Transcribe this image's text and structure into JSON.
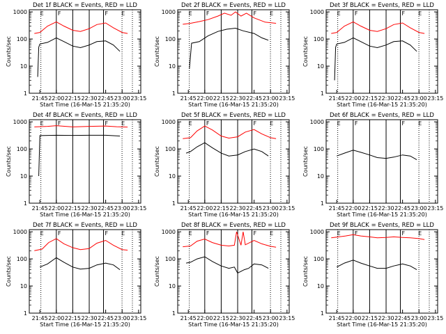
{
  "chart_data": [
    {
      "type": "line",
      "title": "Det 1f BLACK = Events, RED = LLD",
      "xlabel": "Start Time (16-Mar-15 21:35:20)",
      "ylabel": "Counts/sec",
      "xticks": [
        "21:45",
        "22:00",
        "22:15",
        "22:30",
        "22:45",
        "23:00",
        "23:15"
      ],
      "yticks": [
        "1",
        "10",
        "100",
        "1000"
      ],
      "ylim": [
        1,
        1200
      ],
      "yscale": "log",
      "grid": false,
      "markers": [
        "E",
        "F",
        "F",
        "E"
      ],
      "series": [
        {
          "name": "LLD",
          "color": "#ff0000",
          "times": [
            "21:40",
            "21:45",
            "21:52",
            "22:00",
            "22:07",
            "22:15",
            "22:22",
            "22:30",
            "22:37",
            "22:45",
            "22:52",
            "23:00",
            "23:05"
          ],
          "values": [
            160,
            175,
            300,
            430,
            300,
            210,
            190,
            240,
            340,
            390,
            260,
            175,
            160
          ]
        },
        {
          "name": "Events",
          "color": "#000000",
          "times": [
            "21:43",
            "21:44",
            "21:45",
            "21:52",
            "22:00",
            "22:07",
            "22:15",
            "22:22",
            "22:30",
            "22:37",
            "22:45",
            "22:52",
            "22:58"
          ],
          "values": [
            4,
            50,
            65,
            75,
            110,
            80,
            55,
            48,
            60,
            80,
            85,
            60,
            35
          ]
        }
      ]
    },
    {
      "type": "line",
      "title": "Det 2f BLACK = Events, RED = LLD",
      "xlabel": "Start Time (16-Mar-15 21:35:20)",
      "ylabel": "Counts/sec",
      "xticks": [
        "21:45",
        "22:00",
        "22:15",
        "22:30",
        "22:45",
        "23:00",
        "23:15"
      ],
      "yticks": [
        "1",
        "10",
        "100",
        "1000"
      ],
      "ylim": [
        1,
        1200
      ],
      "yscale": "log",
      "grid": false,
      "markers": [
        "E",
        "F",
        "F",
        "E"
      ],
      "series": [
        {
          "name": "LLD",
          "color": "#ff0000",
          "times": [
            "21:40",
            "21:47",
            "21:55",
            "22:03",
            "22:12",
            "22:18",
            "22:24",
            "22:28",
            "22:33",
            "22:38",
            "22:45",
            "22:55",
            "23:05"
          ],
          "values": [
            350,
            380,
            440,
            520,
            700,
            900,
            750,
            1000,
            700,
            900,
            600,
            420,
            380
          ]
        },
        {
          "name": "Events",
          "color": "#000000",
          "times": [
            "21:46",
            "21:48",
            "21:55",
            "22:03",
            "22:12",
            "22:20",
            "22:28",
            "22:35",
            "22:45",
            "22:52",
            "22:58"
          ],
          "values": [
            8,
            70,
            80,
            130,
            190,
            230,
            250,
            200,
            160,
            110,
            90
          ]
        }
      ]
    },
    {
      "type": "line",
      "title": "Det 3f BLACK = Events, RED = LLD",
      "xlabel": "Start Time (16-Mar-15 21:35:20)",
      "ylabel": "Counts/sec",
      "xticks": [
        "21:45",
        "22:00",
        "22:15",
        "22:30",
        "22:45",
        "23:00",
        "23:15"
      ],
      "yticks": [
        "1",
        "10",
        "100",
        "1000"
      ],
      "ylim": [
        1,
        1200
      ],
      "yscale": "log",
      "grid": false,
      "markers": [
        "E",
        "F",
        "F",
        "E"
      ],
      "series": [
        {
          "name": "LLD",
          "color": "#ff0000",
          "times": [
            "21:40",
            "21:45",
            "21:52",
            "22:00",
            "22:07",
            "22:15",
            "22:22",
            "22:30",
            "22:37",
            "22:45",
            "22:52",
            "23:00",
            "23:05"
          ],
          "values": [
            160,
            175,
            300,
            430,
            300,
            210,
            190,
            240,
            340,
            390,
            260,
            175,
            160
          ]
        },
        {
          "name": "Events",
          "color": "#000000",
          "times": [
            "21:43",
            "21:44",
            "21:45",
            "21:52",
            "22:00",
            "22:07",
            "22:15",
            "22:22",
            "22:30",
            "22:37",
            "22:45",
            "22:52",
            "22:58"
          ],
          "values": [
            3,
            50,
            65,
            75,
            110,
            80,
            55,
            48,
            60,
            80,
            85,
            60,
            35
          ]
        }
      ]
    },
    {
      "type": "line",
      "title": "Det 4f BLACK = Events, RED = LLD",
      "xlabel": "Start Time (16-Mar-15 21:35:20)",
      "ylabel": "Counts/sec",
      "xticks": [
        "21:45",
        "22:00",
        "22:15",
        "22:30",
        "22:45",
        "23:00",
        "23:15"
      ],
      "yticks": [
        "1",
        "10",
        "100",
        "1000"
      ],
      "ylim": [
        1,
        1200
      ],
      "yscale": "log",
      "grid": false,
      "markers": [
        "E",
        "F",
        "F",
        "E"
      ],
      "series": [
        {
          "name": "LLD",
          "color": "#ff0000",
          "times": [
            "21:40",
            "21:52",
            "22:00",
            "22:15",
            "22:30",
            "22:45",
            "22:55",
            "23:05"
          ],
          "values": [
            650,
            680,
            720,
            650,
            680,
            700,
            660,
            640
          ]
        },
        {
          "name": "Events",
          "color": "#000000",
          "times": [
            "21:44",
            "21:45",
            "22:00",
            "22:15",
            "22:30",
            "22:45",
            "22:58"
          ],
          "values": [
            10,
            310,
            320,
            315,
            320,
            320,
            300
          ]
        }
      ]
    },
    {
      "type": "line",
      "title": "Det 5f BLACK = Events, RED = LLD",
      "xlabel": "Start Time (16-Mar-15 21:35:20)",
      "ylabel": "Counts/sec",
      "xticks": [
        "21:45",
        "22:00",
        "22:15",
        "22:30",
        "22:45",
        "23:00",
        "23:15"
      ],
      "yticks": [
        "1",
        "10",
        "100",
        "1000"
      ],
      "ylim": [
        1,
        1200
      ],
      "yscale": "log",
      "grid": false,
      "markers": [
        "E",
        "F",
        "F",
        "E"
      ],
      "series": [
        {
          "name": "LLD",
          "color": "#ff0000",
          "times": [
            "21:40",
            "21:47",
            "21:53",
            "22:00",
            "22:07",
            "22:15",
            "22:22",
            "22:30",
            "22:37",
            "22:45",
            "22:52",
            "23:00",
            "23:05"
          ],
          "values": [
            240,
            260,
            460,
            700,
            500,
            300,
            250,
            280,
            420,
            520,
            360,
            260,
            240
          ]
        },
        {
          "name": "Events",
          "color": "#000000",
          "times": [
            "21:43",
            "21:47",
            "21:53",
            "22:00",
            "22:07",
            "22:15",
            "22:22",
            "22:30",
            "22:37",
            "22:45",
            "22:52",
            "22:58"
          ],
          "values": [
            70,
            80,
            120,
            170,
            110,
            70,
            55,
            60,
            80,
            100,
            80,
            55
          ]
        }
      ]
    },
    {
      "type": "line",
      "title": "Det 6f BLACK = Events, RED = LLD",
      "xlabel": "Start Time (16-Mar-15 21:35:20)",
      "ylabel": "Counts/sec",
      "xticks": [
        "21:45",
        "22:00",
        "22:15",
        "22:30",
        "22:45",
        "23:00",
        "23:15"
      ],
      "yticks": [
        "1",
        "10",
        "100",
        "1000"
      ],
      "ylim": [
        1,
        1200
      ],
      "yscale": "log",
      "grid": false,
      "markers": [
        "E",
        "F",
        "F",
        "E"
      ],
      "series": [
        {
          "name": "Events",
          "color": "#000000",
          "times": [
            "21:45",
            "21:52",
            "22:00",
            "22:07",
            "22:15",
            "22:22",
            "22:30",
            "22:37",
            "22:45",
            "22:52",
            "22:58"
          ],
          "values": [
            55,
            70,
            90,
            75,
            60,
            48,
            45,
            50,
            60,
            55,
            40
          ]
        }
      ]
    },
    {
      "type": "line",
      "title": "Det 7f BLACK = Events, RED = LLD",
      "xlabel": "Start Time (16-Mar-15 21:35:20)",
      "ylabel": "Counts/sec",
      "xticks": [
        "21:45",
        "22:00",
        "22:15",
        "22:30",
        "22:45",
        "23:00",
        "23:15"
      ],
      "yticks": [
        "1",
        "10",
        "100",
        "1000"
      ],
      "ylim": [
        1,
        1200
      ],
      "yscale": "log",
      "grid": false,
      "markers": [
        "E",
        "F",
        "F",
        "E"
      ],
      "series": [
        {
          "name": "LLD",
          "color": "#ff0000",
          "times": [
            "21:40",
            "21:47",
            "21:53",
            "22:00",
            "22:07",
            "22:15",
            "22:22",
            "22:30",
            "22:37",
            "22:45",
            "22:52",
            "23:00",
            "23:05"
          ],
          "values": [
            200,
            230,
            400,
            560,
            360,
            260,
            220,
            240,
            380,
            480,
            320,
            220,
            210
          ]
        },
        {
          "name": "Events",
          "color": "#000000",
          "times": [
            "21:45",
            "21:52",
            "22:00",
            "22:07",
            "22:15",
            "22:22",
            "22:30",
            "22:37",
            "22:45",
            "22:52",
            "22:58"
          ],
          "values": [
            50,
            65,
            110,
            75,
            50,
            42,
            45,
            60,
            70,
            60,
            40
          ]
        }
      ]
    },
    {
      "type": "line",
      "title": "Det 8f BLACK = Events, RED = LLD",
      "xlabel": "Start Time (16-Mar-15 21:35:20)",
      "ylabel": "Counts/sec",
      "xticks": [
        "21:45",
        "22:00",
        "22:15",
        "22:30",
        "22:45",
        "23:00",
        "23:15"
      ],
      "yticks": [
        "1",
        "10",
        "100",
        "1000"
      ],
      "ylim": [
        1,
        1200
      ],
      "yscale": "log",
      "grid": false,
      "markers": [
        "E",
        "F",
        "F",
        "E"
      ],
      "series": [
        {
          "name": "LLD",
          "color": "#ff0000",
          "times": [
            "21:40",
            "21:47",
            "21:53",
            "22:00",
            "22:07",
            "22:15",
            "22:22",
            "22:27",
            "22:29",
            "22:33",
            "22:35",
            "22:37",
            "22:45",
            "22:52",
            "23:00",
            "23:05"
          ],
          "values": [
            280,
            300,
            450,
            540,
            400,
            320,
            300,
            320,
            1000,
            320,
            1000,
            330,
            480,
            360,
            290,
            270
          ]
        },
        {
          "name": "Events",
          "color": "#000000",
          "times": [
            "21:43",
            "21:47",
            "21:53",
            "22:00",
            "22:07",
            "22:15",
            "22:22",
            "22:27",
            "22:30",
            "22:36",
            "22:40",
            "22:45",
            "22:52",
            "22:58"
          ],
          "values": [
            70,
            75,
            100,
            120,
            80,
            55,
            45,
            50,
            30,
            40,
            45,
            65,
            60,
            45
          ]
        }
      ]
    },
    {
      "type": "line",
      "title": "Det 9f BLACK = Events, RED = LLD",
      "xlabel": "Start Time (16-Mar-15 21:35:20)",
      "ylabel": "Counts/sec",
      "xticks": [
        "21:45",
        "22:00",
        "22:15",
        "22:30",
        "22:45",
        "23:00",
        "23:15"
      ],
      "yticks": [
        "1",
        "10",
        "100",
        "1000"
      ],
      "ylim": [
        1,
        1200
      ],
      "yscale": "log",
      "grid": false,
      "markers": [
        "E",
        "F",
        "F",
        "E"
      ],
      "series": [
        {
          "name": "LLD",
          "color": "#ff0000",
          "times": [
            "21:40",
            "21:47",
            "21:53",
            "22:00",
            "22:07",
            "22:15",
            "22:22",
            "22:30",
            "22:37",
            "22:45",
            "22:52",
            "23:00",
            "23:05"
          ],
          "values": [
            600,
            650,
            700,
            780,
            700,
            650,
            600,
            620,
            650,
            620,
            600,
            560,
            520
          ]
        },
        {
          "name": "Events",
          "color": "#000000",
          "times": [
            "21:45",
            "21:52",
            "22:00",
            "22:07",
            "22:15",
            "22:22",
            "22:30",
            "22:37",
            "22:45",
            "22:52",
            "22:58"
          ],
          "values": [
            50,
            70,
            90,
            70,
            55,
            45,
            45,
            55,
            65,
            55,
            40
          ]
        }
      ]
    }
  ]
}
